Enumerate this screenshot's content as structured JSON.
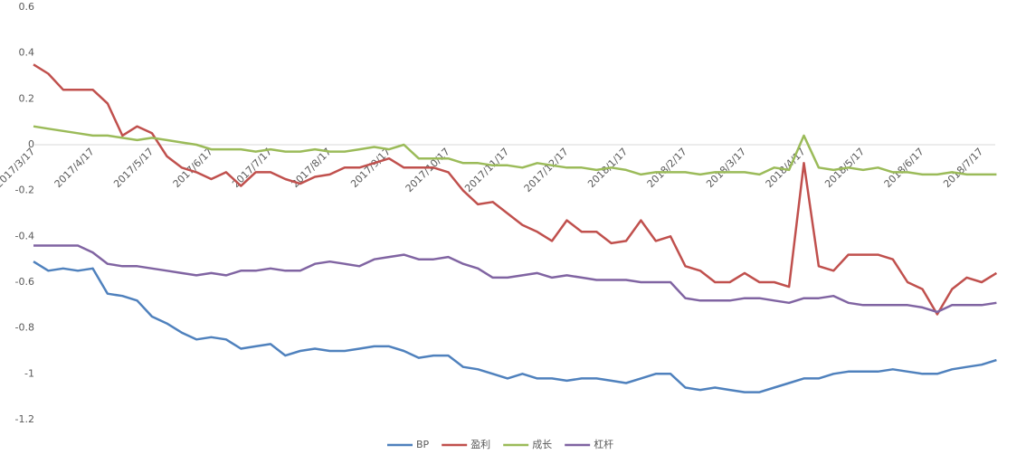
{
  "chart_data": {
    "type": "line",
    "categories": [
      "2017/3/17",
      null,
      null,
      null,
      "2017/4/17",
      null,
      null,
      null,
      "2017/5/17",
      null,
      null,
      null,
      "2017/6/17",
      null,
      null,
      null,
      "2017/7/17",
      null,
      null,
      null,
      "2017/8/17",
      null,
      null,
      null,
      "2017/9/17",
      null,
      null,
      null,
      "2017/10/17",
      null,
      null,
      null,
      "2017/11/17",
      null,
      null,
      null,
      "2017/12/17",
      null,
      null,
      null,
      "2018/1/17",
      null,
      null,
      null,
      "2018/2/17",
      null,
      null,
      null,
      "2018/3/17",
      null,
      null,
      null,
      "2018/4/17",
      null,
      null,
      null,
      "2018/5/17",
      null,
      null,
      null,
      "2018/6/17",
      null,
      null,
      null,
      "2018/7/17",
      null
    ],
    "series": [
      {
        "name": "BP",
        "color": "#4f81bd",
        "values": [
          -0.51,
          -0.55,
          -0.54,
          -0.55,
          -0.54,
          -0.65,
          -0.66,
          -0.68,
          -0.75,
          -0.78,
          -0.82,
          -0.85,
          -0.84,
          -0.85,
          -0.89,
          -0.88,
          -0.87,
          -0.92,
          -0.9,
          -0.89,
          -0.9,
          -0.9,
          -0.89,
          -0.88,
          -0.88,
          -0.9,
          -0.93,
          -0.92,
          -0.92,
          -0.97,
          -0.98,
          -1.0,
          -1.02,
          -1.0,
          -1.02,
          -1.02,
          -1.03,
          -1.02,
          -1.02,
          -1.03,
          -1.04,
          -1.02,
          -1.0,
          -1.0,
          -1.06,
          -1.07,
          -1.06,
          -1.07,
          -1.08,
          -1.08,
          -1.06,
          -1.04,
          -1.02,
          -1.02,
          -1.0,
          -0.99,
          -0.99,
          -0.99,
          -0.98,
          -0.99,
          -1.0,
          -1.0,
          -0.98,
          -0.97,
          -0.96,
          -0.94
        ]
      },
      {
        "name": "盈利",
        "color": "#c0504d",
        "values": [
          0.35,
          0.31,
          0.24,
          0.24,
          0.24,
          0.18,
          0.04,
          0.08,
          0.05,
          -0.05,
          -0.1,
          -0.12,
          -0.15,
          -0.12,
          -0.18,
          -0.12,
          -0.12,
          -0.15,
          -0.17,
          -0.14,
          -0.13,
          -0.1,
          -0.1,
          -0.08,
          -0.06,
          -0.1,
          -0.1,
          -0.1,
          -0.12,
          -0.2,
          -0.26,
          -0.25,
          -0.3,
          -0.35,
          -0.38,
          -0.42,
          -0.33,
          -0.38,
          -0.38,
          -0.43,
          -0.42,
          -0.33,
          -0.42,
          -0.4,
          -0.53,
          -0.55,
          -0.6,
          -0.6,
          -0.56,
          -0.6,
          -0.6,
          -0.62,
          -0.08,
          -0.53,
          -0.55,
          -0.48,
          -0.48,
          -0.48,
          -0.5,
          -0.6,
          -0.63,
          -0.74,
          -0.63,
          -0.58,
          -0.6,
          -0.56
        ]
      },
      {
        "name": "成长",
        "color": "#9bbb59",
        "values": [
          0.08,
          0.07,
          0.06,
          0.05,
          0.04,
          0.04,
          0.03,
          0.02,
          0.03,
          0.02,
          0.01,
          0.0,
          -0.02,
          -0.02,
          -0.02,
          -0.03,
          -0.02,
          -0.03,
          -0.03,
          -0.02,
          -0.03,
          -0.03,
          -0.02,
          -0.01,
          -0.02,
          0.0,
          -0.06,
          -0.06,
          -0.06,
          -0.08,
          -0.08,
          -0.09,
          -0.09,
          -0.1,
          -0.08,
          -0.09,
          -0.1,
          -0.1,
          -0.11,
          -0.1,
          -0.11,
          -0.13,
          -0.12,
          -0.12,
          -0.12,
          -0.13,
          -0.12,
          -0.12,
          -0.12,
          -0.13,
          -0.1,
          -0.11,
          0.04,
          -0.1,
          -0.11,
          -0.1,
          -0.11,
          -0.1,
          -0.12,
          -0.12,
          -0.13,
          -0.13,
          -0.12,
          -0.13,
          -0.13,
          -0.13
        ]
      },
      {
        "name": "杠杆",
        "color": "#8064a2",
        "values": [
          -0.44,
          -0.44,
          -0.44,
          -0.44,
          -0.47,
          -0.52,
          -0.53,
          -0.53,
          -0.54,
          -0.55,
          -0.56,
          -0.57,
          -0.56,
          -0.57,
          -0.55,
          -0.55,
          -0.54,
          -0.55,
          -0.55,
          -0.52,
          -0.51,
          -0.52,
          -0.53,
          -0.5,
          -0.49,
          -0.48,
          -0.5,
          -0.5,
          -0.49,
          -0.52,
          -0.54,
          -0.58,
          -0.58,
          -0.57,
          -0.56,
          -0.58,
          -0.57,
          -0.58,
          -0.59,
          -0.59,
          -0.59,
          -0.6,
          -0.6,
          -0.6,
          -0.67,
          -0.68,
          -0.68,
          -0.68,
          -0.67,
          -0.67,
          -0.68,
          -0.69,
          -0.67,
          -0.67,
          -0.66,
          -0.69,
          -0.7,
          -0.7,
          -0.7,
          -0.7,
          -0.71,
          -0.73,
          -0.7,
          -0.7,
          -0.7,
          -0.69
        ]
      }
    ],
    "ylim": [
      -1.2,
      0.6
    ],
    "yticks": [
      0.6,
      0.4,
      0.2,
      0,
      -0.2,
      -0.4,
      -0.6,
      -0.8,
      -1,
      -1.2
    ],
    "grid": false,
    "legend": "bottom"
  }
}
